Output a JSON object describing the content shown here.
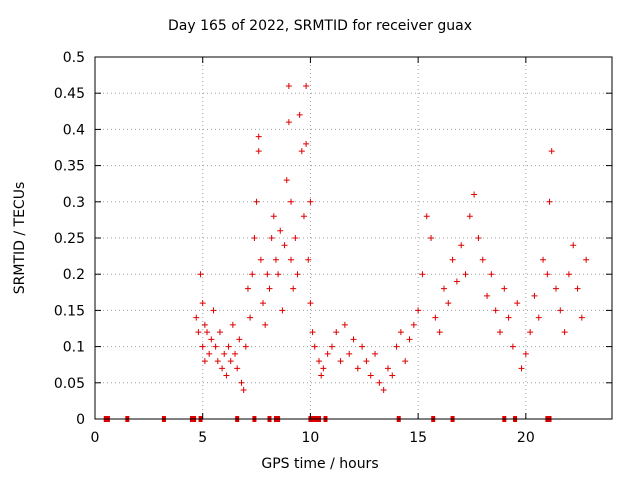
{
  "chart_data": {
    "type": "scatter",
    "title": "Day 165 of 2022, SRMTID for receiver guax",
    "xlabel": "GPS time / hours",
    "ylabel": "SRMTID / TECUs",
    "xlim": [
      0,
      24
    ],
    "ylim": [
      0,
      0.5
    ],
    "xticks": [
      0,
      5,
      10,
      15,
      20
    ],
    "yticks": [
      0,
      0.05,
      0.1,
      0.15,
      0.2,
      0.25,
      0.3,
      0.35,
      0.4,
      0.45,
      0.5
    ],
    "grid": true,
    "marker": "+",
    "color": "#dd0000",
    "series": [
      {
        "name": "SRMTID",
        "x": [
          4.7,
          4.8,
          4.9,
          5.0,
          5.0,
          5.1,
          5.1,
          5.2,
          5.3,
          5.4,
          5.5,
          5.6,
          5.7,
          5.8,
          5.9,
          6.0,
          6.1,
          6.2,
          6.3,
          6.4,
          6.5,
          6.6,
          6.7,
          6.8,
          6.9,
          7.0,
          7.1,
          7.2,
          7.3,
          7.4,
          7.5,
          7.6,
          7.6,
          7.7,
          7.8,
          7.9,
          8.0,
          8.1,
          8.2,
          8.3,
          8.4,
          8.5,
          8.6,
          8.7,
          8.8,
          8.9,
          9.0,
          9.0,
          9.1,
          9.1,
          9.2,
          9.3,
          9.4,
          9.5,
          9.6,
          9.7,
          9.8,
          9.8,
          9.9,
          10.0,
          10.0,
          10.1,
          10.2,
          10.4,
          10.5,
          10.6,
          10.8,
          11.0,
          11.2,
          11.4,
          11.6,
          11.8,
          12.0,
          12.2,
          12.4,
          12.6,
          12.8,
          13.0,
          13.2,
          13.4,
          13.6,
          13.8,
          14.0,
          14.2,
          14.4,
          14.6,
          14.8,
          15.0,
          15.2,
          15.4,
          15.6,
          15.8,
          16.0,
          16.2,
          16.4,
          16.6,
          16.8,
          17.0,
          17.2,
          17.4,
          17.6,
          17.8,
          18.0,
          18.2,
          18.4,
          18.6,
          18.8,
          19.0,
          19.2,
          19.4,
          19.6,
          19.8,
          20.0,
          20.2,
          20.4,
          20.6,
          20.8,
          21.0,
          21.1,
          21.2,
          21.4,
          21.6,
          21.8,
          22.0,
          22.2,
          22.4,
          22.6,
          22.8
        ],
        "y": [
          0.14,
          0.12,
          0.2,
          0.16,
          0.1,
          0.13,
          0.08,
          0.12,
          0.09,
          0.11,
          0.15,
          0.1,
          0.08,
          0.12,
          0.07,
          0.09,
          0.06,
          0.1,
          0.08,
          0.13,
          0.09,
          0.07,
          0.11,
          0.05,
          0.04,
          0.1,
          0.18,
          0.14,
          0.2,
          0.25,
          0.3,
          0.37,
          0.39,
          0.22,
          0.16,
          0.13,
          0.2,
          0.18,
          0.25,
          0.28,
          0.22,
          0.2,
          0.26,
          0.15,
          0.24,
          0.33,
          0.46,
          0.41,
          0.3,
          0.22,
          0.18,
          0.25,
          0.2,
          0.42,
          0.37,
          0.28,
          0.46,
          0.38,
          0.22,
          0.3,
          0.16,
          0.12,
          0.1,
          0.08,
          0.06,
          0.07,
          0.09,
          0.1,
          0.12,
          0.08,
          0.13,
          0.09,
          0.11,
          0.07,
          0.1,
          0.08,
          0.06,
          0.09,
          0.05,
          0.04,
          0.07,
          0.06,
          0.1,
          0.12,
          0.08,
          0.11,
          0.13,
          0.15,
          0.2,
          0.28,
          0.25,
          0.14,
          0.12,
          0.18,
          0.16,
          0.22,
          0.19,
          0.24,
          0.2,
          0.28,
          0.31,
          0.25,
          0.22,
          0.17,
          0.2,
          0.15,
          0.12,
          0.18,
          0.14,
          0.1,
          0.16,
          0.07,
          0.09,
          0.12,
          0.17,
          0.14,
          0.22,
          0.2,
          0.3,
          0.37,
          0.18,
          0.15,
          0.12,
          0.2,
          0.24,
          0.18,
          0.14,
          0.22
        ],
        "zero_x": [
          0.5,
          0.6,
          1.5,
          3.2,
          4.5,
          4.6,
          4.9,
          6.6,
          7.4,
          8.1,
          8.4,
          8.5,
          10.0,
          10.1,
          10.2,
          10.3,
          10.4,
          10.7,
          14.1,
          15.7,
          16.6,
          19.0,
          19.5,
          21.0,
          21.1
        ]
      }
    ]
  }
}
